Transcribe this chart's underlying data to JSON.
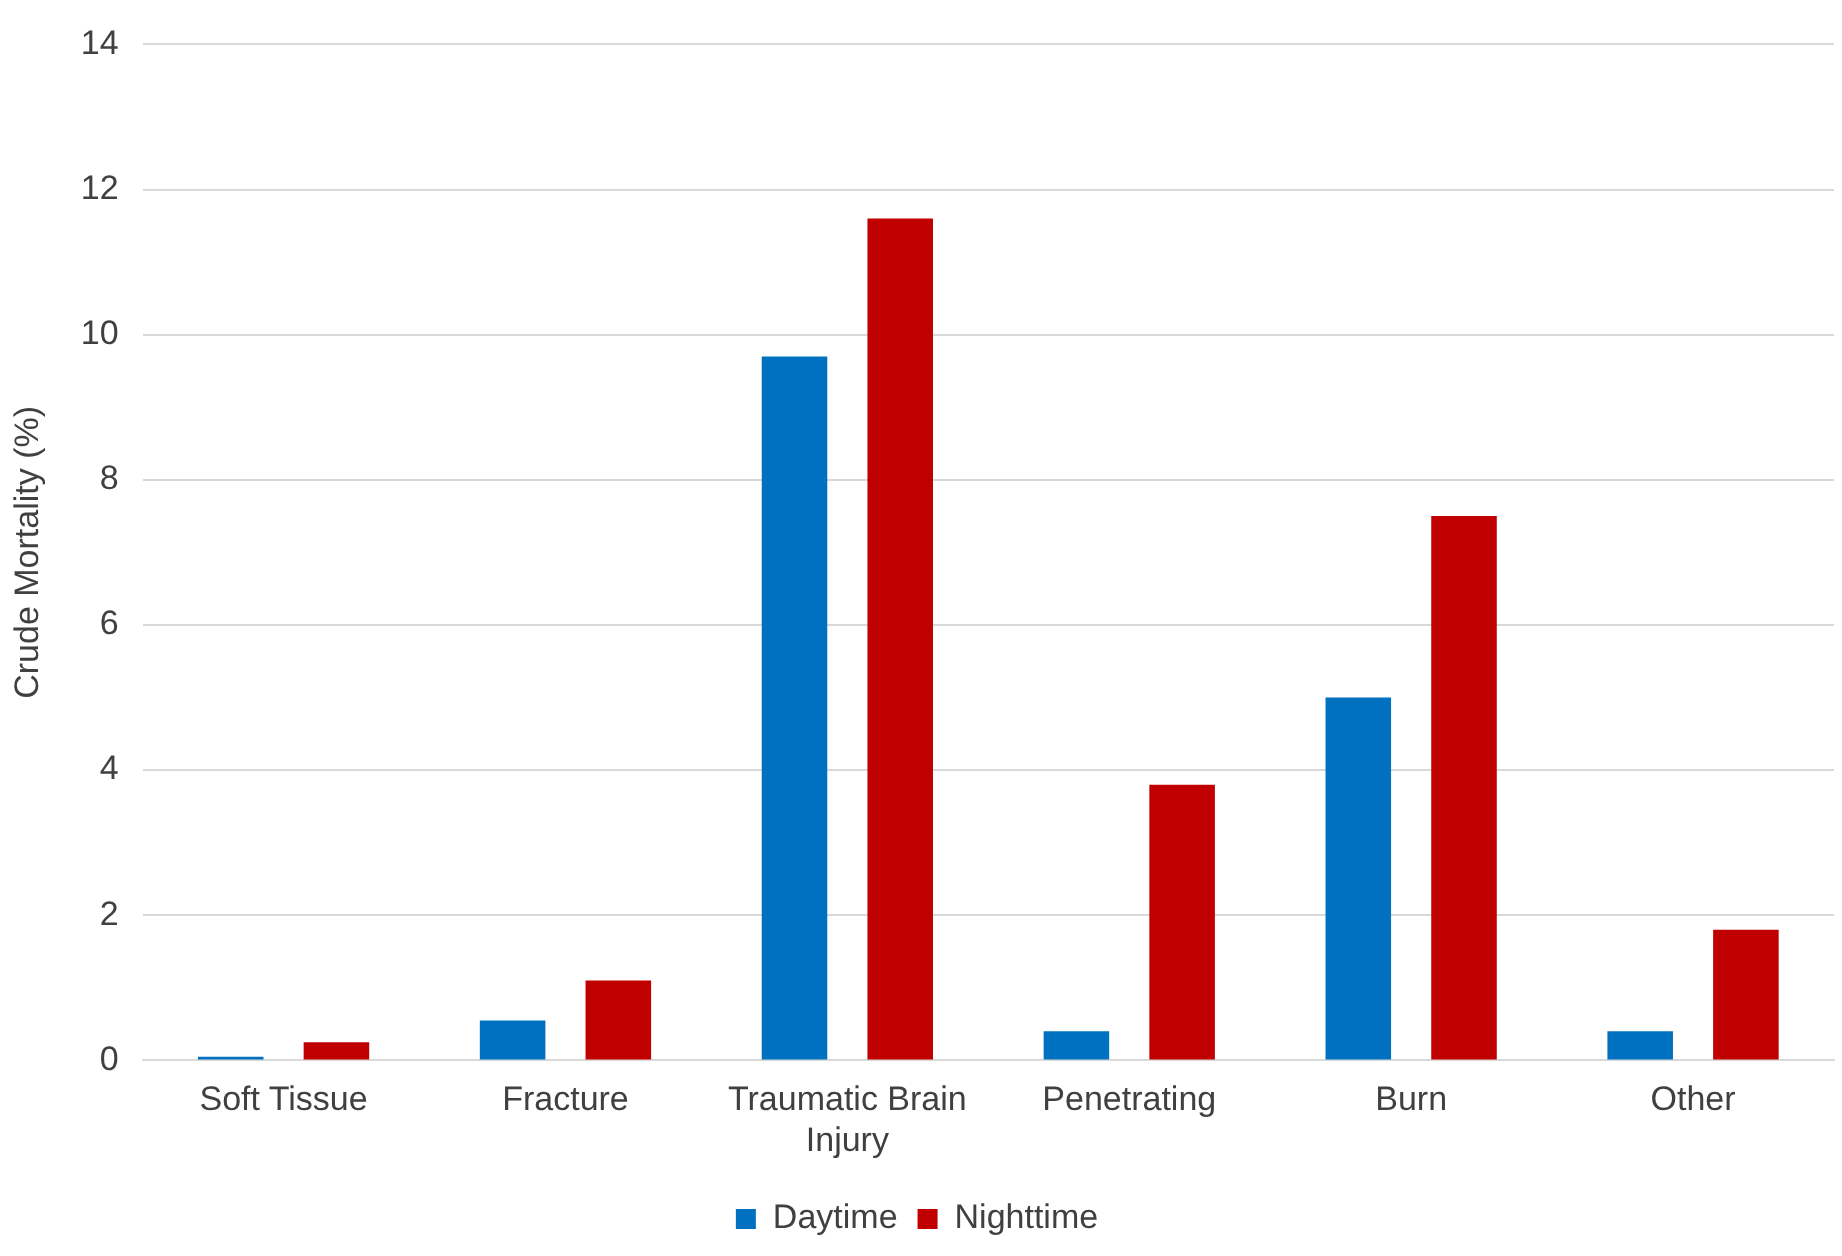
{
  "chart_data": {
    "type": "bar",
    "ylabel": "Crude Mortality (%)",
    "categories": [
      "Soft Tissue",
      "Fracture",
      "Traumatic Brain Injury",
      "Penetrating",
      "Burn",
      "Other"
    ],
    "series": [
      {
        "name": "Daytime",
        "color": "#0070c0",
        "values": [
          0.05,
          0.55,
          9.7,
          0.4,
          5.0,
          0.4
        ]
      },
      {
        "name": "Nighttime",
        "color": "#c00000",
        "values": [
          0.25,
          1.1,
          11.6,
          3.8,
          7.5,
          1.8
        ]
      }
    ],
    "ylim": [
      0,
      14
    ],
    "yticks": [
      0,
      2,
      4,
      6,
      8,
      10,
      12,
      14
    ],
    "grid": "y",
    "legend": "bottom"
  }
}
